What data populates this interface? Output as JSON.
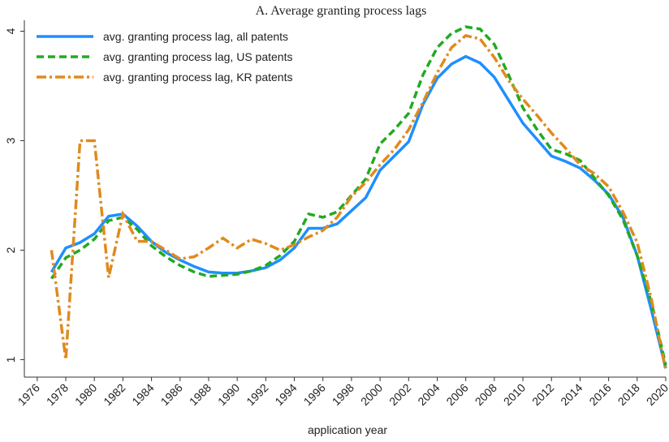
{
  "chart_data": {
    "type": "line",
    "title": "A. Average granting process lags",
    "x_label": "application year",
    "x": [
      1977,
      1978,
      1979,
      1980,
      1981,
      1982,
      1983,
      1984,
      1985,
      1986,
      1987,
      1988,
      1989,
      1990,
      1991,
      1992,
      1993,
      1994,
      1995,
      1996,
      1997,
      1998,
      1999,
      2000,
      2001,
      2002,
      2003,
      2004,
      2005,
      2006,
      2007,
      2008,
      2009,
      2010,
      2011,
      2012,
      2013,
      2014,
      2015,
      2016,
      2017,
      2018,
      2019,
      2020
    ],
    "series": [
      {
        "name": "avg. granting process lag, all patents",
        "color": "#1e8fff",
        "style": "solid",
        "values": [
          1.8,
          2.02,
          2.07,
          2.15,
          2.31,
          2.33,
          2.22,
          2.08,
          1.98,
          1.91,
          1.85,
          1.8,
          1.79,
          1.79,
          1.81,
          1.84,
          1.91,
          2.02,
          2.2,
          2.2,
          2.24,
          2.36,
          2.48,
          2.73,
          2.86,
          2.99,
          3.33,
          3.57,
          3.7,
          3.77,
          3.71,
          3.58,
          3.37,
          3.16,
          3.01,
          2.86,
          2.81,
          2.75,
          2.64,
          2.51,
          2.3,
          1.95,
          1.45,
          0.92
        ]
      },
      {
        "name": "avg. granting process lag, US patents",
        "color": "#22aa22",
        "style": "dashed",
        "values": [
          1.74,
          1.93,
          2.0,
          2.1,
          2.27,
          2.3,
          2.19,
          2.04,
          1.94,
          1.86,
          1.8,
          1.76,
          1.77,
          1.78,
          1.81,
          1.86,
          1.95,
          2.08,
          2.33,
          2.3,
          2.35,
          2.5,
          2.65,
          2.97,
          3.1,
          3.25,
          3.6,
          3.85,
          3.98,
          4.04,
          4.02,
          3.88,
          3.6,
          3.3,
          3.1,
          2.92,
          2.88,
          2.82,
          2.66,
          2.5,
          2.28,
          1.95,
          1.52,
          0.95
        ]
      },
      {
        "name": "avg. granting process lag, KR patents",
        "color": "#e08a1e",
        "style": "dashdot",
        "values": [
          2.0,
          1.0,
          3.0,
          3.0,
          1.75,
          2.33,
          2.08,
          2.08,
          2.0,
          1.92,
          1.94,
          2.02,
          2.11,
          2.02,
          2.1,
          2.06,
          2.0,
          2.05,
          2.12,
          2.18,
          2.3,
          2.49,
          2.62,
          2.78,
          2.92,
          3.1,
          3.35,
          3.62,
          3.85,
          3.96,
          3.93,
          3.76,
          3.55,
          3.38,
          3.23,
          3.07,
          2.93,
          2.78,
          2.7,
          2.58,
          2.35,
          2.07,
          1.55,
          0.9
        ]
      }
    ],
    "xlim": [
      1975.1,
      2020
    ],
    "ylim": [
      0.84,
      4.1
    ],
    "xticks": [
      1976,
      1978,
      1980,
      1982,
      1984,
      1986,
      1988,
      1990,
      1992,
      1994,
      1996,
      1998,
      2000,
      2002,
      2004,
      2006,
      2008,
      2010,
      2012,
      2014,
      2016,
      2018,
      2020
    ],
    "yticks": [
      1,
      2,
      3,
      4
    ],
    "grid": false,
    "legend": "top-left"
  }
}
